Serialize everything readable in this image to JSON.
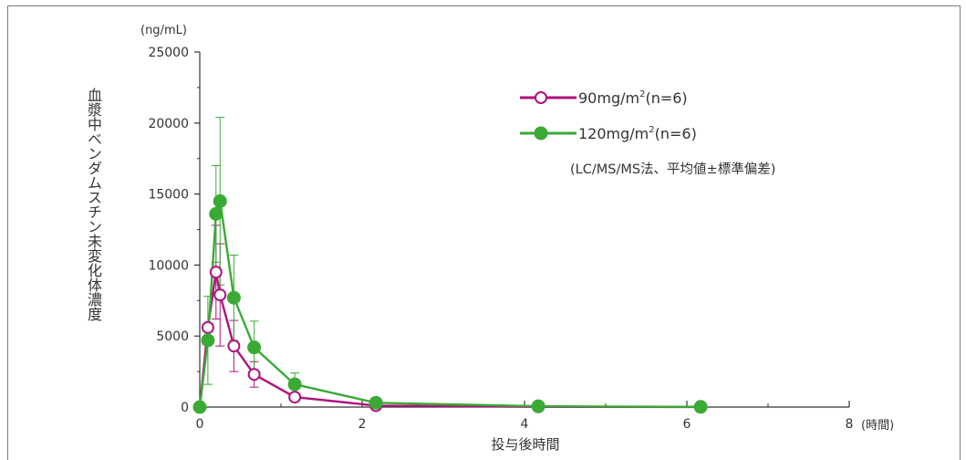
{
  "chart_data": {
    "type": "line",
    "y_unit": "(ng/mL)",
    "x_unit": "(時間)",
    "xlabel": "投与後時間",
    "ylabel": "血漿中ベンダムスチン未変化体濃度",
    "xlim": [
      0,
      8
    ],
    "ylim": [
      0,
      25000
    ],
    "x_ticks": [
      "0",
      "2",
      "4",
      "6",
      "8"
    ],
    "y_ticks": [
      "0",
      "5000",
      "10000",
      "15000",
      "20000",
      "25000"
    ],
    "note": "(LC/MS/MS法、平均値±標準偏差)",
    "series": [
      {
        "name": "90mg/m²(n=6)",
        "legend_main": "90mg/m",
        "legend_sup": "2",
        "legend_tail": "(n=6)",
        "color": "#b0127d",
        "marker": "open-circle",
        "x": [
          0,
          0.1,
          0.2,
          0.25,
          0.42,
          0.67,
          1.17,
          2.17,
          4.17,
          6.17
        ],
        "y": [
          0,
          5600,
          9500,
          7900,
          4300,
          2300,
          700,
          100,
          20,
          5
        ],
        "err": [
          0,
          0,
          3300,
          3600,
          1800,
          900,
          0,
          0,
          0,
          0
        ]
      },
      {
        "name": "120mg/m²(n=6)",
        "legend_main": "120mg/m",
        "legend_sup": "2",
        "legend_tail": "(n=6)",
        "color": "#3aaa35",
        "marker": "filled-circle",
        "x": [
          0,
          0.1,
          0.2,
          0.25,
          0.42,
          0.67,
          1.17,
          2.17,
          4.17,
          6.17
        ],
        "y": [
          0,
          4700,
          13600,
          14500,
          7700,
          4200,
          1600,
          300,
          60,
          15
        ],
        "err": [
          0,
          3100,
          3400,
          5900,
          3000,
          1850,
          800,
          0,
          0,
          0
        ]
      }
    ]
  }
}
